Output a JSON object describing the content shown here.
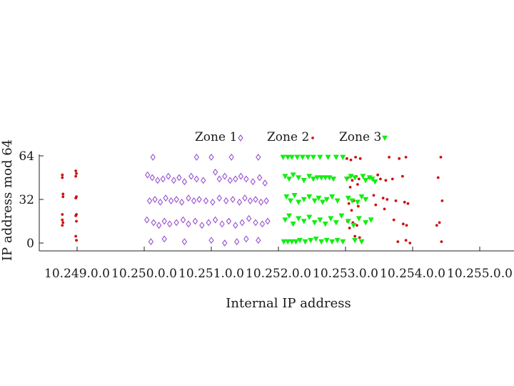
{
  "chart_data": {
    "type": "scatter",
    "xlabel": "Internal IP address",
    "ylabel": "IP address mod 64",
    "x_ticks": [
      "10.249.0.0",
      "10.250.0.0",
      "10.251.0.0",
      "10.252.0.0",
      "10.253.0.0",
      "10.254.0.0",
      "10.255.0.0"
    ],
    "y_ticks": [
      "0",
      "32",
      "64"
    ],
    "x_units": "x values in /16 subnets from 10.249.0.0 (e.g. 3.5 = 10.252.128.0)",
    "xlim": [
      -0.25,
      5.5
    ],
    "ylim": [
      -4,
      68
    ],
    "legend": {
      "position": "top"
    },
    "series": [
      {
        "name": "",
        "color": "#cc1010",
        "marker": "dot",
        "points": [
          [
            -0.22,
            50
          ],
          [
            -0.22,
            48
          ],
          [
            -0.21,
            36
          ],
          [
            -0.21,
            34
          ],
          [
            -0.22,
            21
          ],
          [
            -0.22,
            17
          ],
          [
            -0.21,
            15
          ],
          [
            -0.22,
            13
          ],
          [
            -0.02,
            53
          ],
          [
            -0.01,
            51
          ],
          [
            -0.02,
            49
          ],
          [
            -0.01,
            34
          ],
          [
            -0.02,
            33
          ],
          [
            -0.01,
            21
          ],
          [
            -0.02,
            20
          ],
          [
            -0.01,
            16
          ],
          [
            -0.02,
            5
          ],
          [
            -0.01,
            2
          ],
          [
            4.02,
            62
          ],
          [
            4.08,
            61
          ],
          [
            4.15,
            63
          ],
          [
            4.22,
            62
          ],
          [
            4.04,
            48
          ],
          [
            4.1,
            46
          ],
          [
            4.16,
            49
          ],
          [
            4.2,
            47
          ],
          [
            4.07,
            41
          ],
          [
            4.18,
            43
          ],
          [
            4.05,
            29
          ],
          [
            4.12,
            31
          ],
          [
            4.19,
            27
          ],
          [
            4.09,
            24
          ],
          [
            4.03,
            16
          ],
          [
            4.11,
            15
          ],
          [
            4.17,
            13
          ],
          [
            4.06,
            11
          ],
          [
            4.14,
            5
          ],
          [
            4.21,
            4
          ],
          [
            4.35,
            48
          ],
          [
            4.48,
            50
          ],
          [
            4.52,
            47
          ],
          [
            4.6,
            46
          ],
          [
            4.42,
            35
          ],
          [
            4.56,
            33
          ],
          [
            4.62,
            32
          ],
          [
            4.45,
            28
          ],
          [
            4.58,
            25
          ],
          [
            4.65,
            63
          ],
          [
            4.8,
            62
          ],
          [
            4.9,
            63
          ],
          [
            4.7,
            47
          ],
          [
            4.85,
            49
          ],
          [
            4.75,
            31
          ],
          [
            4.88,
            30
          ],
          [
            4.93,
            29
          ],
          [
            4.72,
            17
          ],
          [
            4.86,
            14
          ],
          [
            4.91,
            13
          ],
          [
            4.78,
            1
          ],
          [
            4.9,
            2
          ],
          [
            4.96,
            0
          ],
          [
            5.42,
            63
          ],
          [
            5.38,
            48
          ],
          [
            5.44,
            31
          ],
          [
            5.4,
            15
          ],
          [
            5.36,
            13
          ],
          [
            5.43,
            1
          ]
        ]
      },
      {
        "name": "Zone 1",
        "color": "#9a4fd0",
        "marker": "diamond",
        "points": [
          [
            1.13,
            63
          ],
          [
            1.78,
            63
          ],
          [
            2.0,
            63
          ],
          [
            2.3,
            63
          ],
          [
            2.7,
            63
          ],
          [
            1.05,
            50
          ],
          [
            1.12,
            48
          ],
          [
            1.2,
            46
          ],
          [
            1.28,
            47
          ],
          [
            1.36,
            49
          ],
          [
            1.44,
            46
          ],
          [
            1.52,
            48
          ],
          [
            1.6,
            45
          ],
          [
            1.7,
            49
          ],
          [
            1.78,
            47
          ],
          [
            1.88,
            46
          ],
          [
            2.06,
            52
          ],
          [
            2.12,
            47
          ],
          [
            2.2,
            49
          ],
          [
            2.28,
            46
          ],
          [
            2.36,
            47
          ],
          [
            2.44,
            49
          ],
          [
            2.52,
            47
          ],
          [
            2.62,
            45
          ],
          [
            2.72,
            48
          ],
          [
            2.8,
            44
          ],
          [
            1.08,
            31
          ],
          [
            1.16,
            32
          ],
          [
            1.24,
            30
          ],
          [
            1.32,
            33
          ],
          [
            1.4,
            31
          ],
          [
            1.48,
            32
          ],
          [
            1.56,
            30
          ],
          [
            1.66,
            33
          ],
          [
            1.74,
            31
          ],
          [
            1.82,
            32
          ],
          [
            1.92,
            31
          ],
          [
            2.02,
            30
          ],
          [
            2.12,
            33
          ],
          [
            2.22,
            31
          ],
          [
            2.32,
            32
          ],
          [
            2.42,
            30
          ],
          [
            2.5,
            33
          ],
          [
            2.58,
            31
          ],
          [
            2.66,
            32
          ],
          [
            2.74,
            30
          ],
          [
            2.82,
            31
          ],
          [
            1.04,
            17
          ],
          [
            1.14,
            15
          ],
          [
            1.22,
            13
          ],
          [
            1.3,
            16
          ],
          [
            1.38,
            14
          ],
          [
            1.48,
            15
          ],
          [
            1.58,
            17
          ],
          [
            1.66,
            14
          ],
          [
            1.76,
            16
          ],
          [
            1.86,
            13
          ],
          [
            1.96,
            15
          ],
          [
            2.06,
            17
          ],
          [
            2.16,
            14
          ],
          [
            2.26,
            16
          ],
          [
            2.36,
            13
          ],
          [
            2.46,
            15
          ],
          [
            2.56,
            18
          ],
          [
            2.66,
            15
          ],
          [
            2.76,
            14
          ],
          [
            2.84,
            16
          ],
          [
            1.1,
            1
          ],
          [
            1.3,
            3
          ],
          [
            1.6,
            1
          ],
          [
            2.0,
            2
          ],
          [
            2.2,
            0
          ],
          [
            2.38,
            1
          ],
          [
            2.52,
            3
          ],
          [
            2.7,
            2
          ]
        ]
      },
      {
        "name": "Zone 2",
        "color": "#d01818",
        "marker": "dot",
        "points": []
      },
      {
        "name": "Zone 3",
        "color": "#11ee11",
        "marker": "triangle",
        "points": [
          [
            3.07,
            63
          ],
          [
            3.14,
            63
          ],
          [
            3.2,
            63
          ],
          [
            3.28,
            63
          ],
          [
            3.36,
            63
          ],
          [
            3.44,
            63
          ],
          [
            3.52,
            63
          ],
          [
            3.62,
            63
          ],
          [
            3.74,
            63
          ],
          [
            3.86,
            63
          ],
          [
            3.96,
            63
          ],
          [
            3.1,
            49
          ],
          [
            3.16,
            47
          ],
          [
            3.22,
            50
          ],
          [
            3.3,
            48
          ],
          [
            3.38,
            46
          ],
          [
            3.46,
            49
          ],
          [
            3.52,
            47
          ],
          [
            3.58,
            48
          ],
          [
            3.64,
            48
          ],
          [
            3.7,
            48
          ],
          [
            3.76,
            48
          ],
          [
            3.82,
            47
          ],
          [
            4.02,
            47
          ],
          [
            4.08,
            49
          ],
          [
            4.14,
            48
          ],
          [
            4.26,
            49
          ],
          [
            4.3,
            46
          ],
          [
            4.36,
            48
          ],
          [
            4.4,
            47
          ],
          [
            4.44,
            45
          ],
          [
            3.12,
            34
          ],
          [
            3.18,
            31
          ],
          [
            3.24,
            35
          ],
          [
            3.3,
            30
          ],
          [
            3.38,
            32
          ],
          [
            3.46,
            34
          ],
          [
            3.54,
            31
          ],
          [
            3.6,
            33
          ],
          [
            3.66,
            30
          ],
          [
            3.72,
            32
          ],
          [
            3.8,
            34
          ],
          [
            3.88,
            31
          ],
          [
            4.04,
            33
          ],
          [
            4.1,
            31
          ],
          [
            4.18,
            30
          ],
          [
            4.24,
            34
          ],
          [
            4.3,
            32
          ],
          [
            3.1,
            17
          ],
          [
            3.16,
            20
          ],
          [
            3.22,
            14
          ],
          [
            3.3,
            18
          ],
          [
            3.38,
            16
          ],
          [
            3.46,
            19
          ],
          [
            3.54,
            15
          ],
          [
            3.62,
            17
          ],
          [
            3.7,
            14
          ],
          [
            3.78,
            18
          ],
          [
            3.86,
            15
          ],
          [
            3.94,
            20
          ],
          [
            4.04,
            16
          ],
          [
            4.12,
            13
          ],
          [
            4.2,
            18
          ],
          [
            4.3,
            15
          ],
          [
            4.38,
            17
          ],
          [
            3.08,
            1
          ],
          [
            3.14,
            1
          ],
          [
            3.2,
            1
          ],
          [
            3.26,
            1
          ],
          [
            3.32,
            2
          ],
          [
            3.4,
            1
          ],
          [
            3.48,
            2
          ],
          [
            3.56,
            3
          ],
          [
            3.64,
            1
          ],
          [
            3.72,
            2
          ],
          [
            3.8,
            1
          ],
          [
            3.88,
            2
          ],
          [
            3.96,
            1
          ],
          [
            4.14,
            2
          ],
          [
            4.24,
            1
          ]
        ]
      }
    ]
  }
}
